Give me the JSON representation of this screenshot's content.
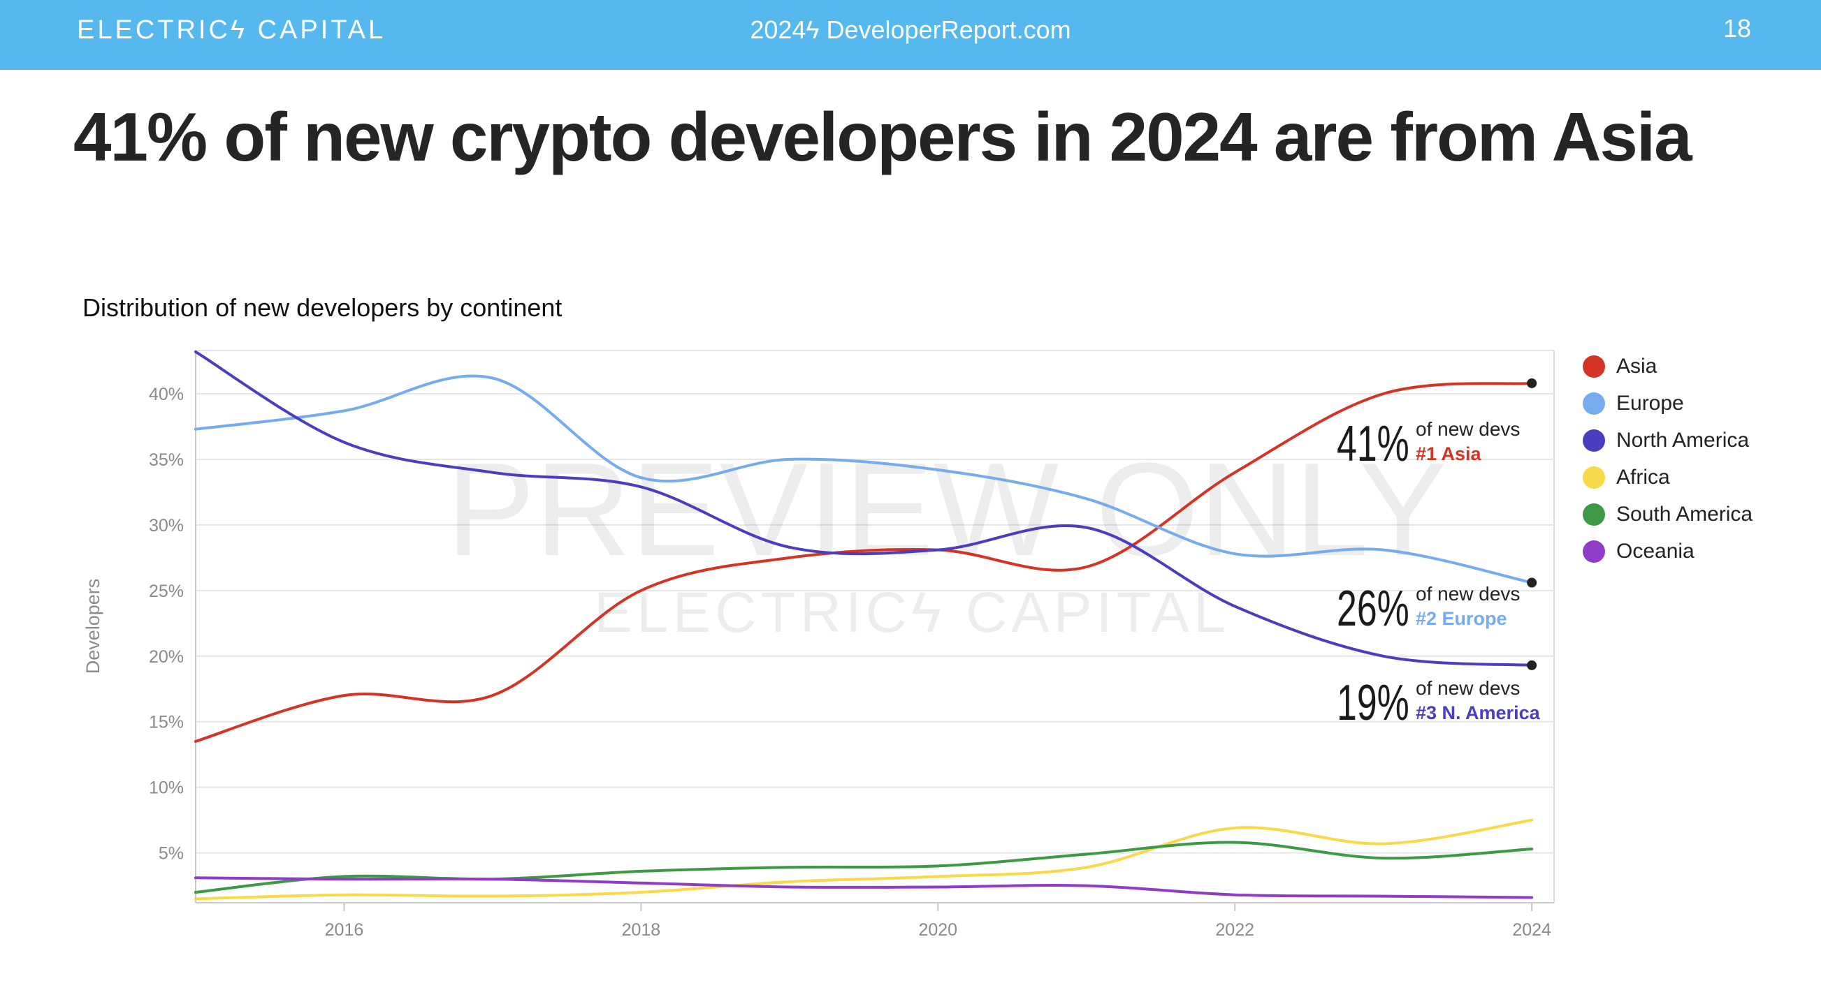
{
  "header": {
    "brand": "ELECTRICϟ CAPITAL",
    "site": "2024ϟ DeveloperReport.com",
    "page_number": "18",
    "bar_color": "#55b8ee"
  },
  "headline": "41% of new crypto developers in 2024 are from Asia",
  "watermark": {
    "line1": "PREVIEW ONLY",
    "line2": "ELECTRICϟ CAPITAL"
  },
  "chart_data": {
    "type": "line",
    "title": "Distribution of new developers by continent",
    "ylabel": "Developers",
    "xlabel": "",
    "xlim": [
      2015,
      2024.15
    ],
    "ylim": [
      1.2,
      43.3
    ],
    "x_ticks": [
      2016,
      2018,
      2020,
      2022,
      2024
    ],
    "x_tick_labels": [
      "2016",
      "2018",
      "2020",
      "2022",
      "2024"
    ],
    "y_ticks": [
      5,
      10,
      15,
      20,
      25,
      30,
      35,
      40
    ],
    "y_tick_labels": [
      "5%",
      "10%",
      "15%",
      "20%",
      "25%",
      "30%",
      "35%",
      "40%"
    ],
    "grid": true,
    "legend_position": "right",
    "x": [
      2015,
      2016,
      2017,
      2018,
      2019,
      2020,
      2021,
      2022,
      2023,
      2024
    ],
    "series": [
      {
        "name": "Asia",
        "color": "#d43325",
        "values": [
          13.5,
          17.0,
          17.0,
          25.0,
          27.5,
          28.1,
          26.8,
          34.0,
          40.0,
          40.8
        ],
        "end_marker": true
      },
      {
        "name": "Europe",
        "color": "#76acef",
        "values": [
          37.3,
          38.7,
          41.2,
          33.6,
          35.0,
          34.2,
          32.0,
          27.8,
          28.1,
          25.6
        ],
        "end_marker": true
      },
      {
        "name": "North America",
        "color": "#4b3dbf",
        "values": [
          43.2,
          36.3,
          34.0,
          32.9,
          28.3,
          28.1,
          29.8,
          23.8,
          20.0,
          19.3
        ],
        "end_marker": true
      },
      {
        "name": "Africa",
        "color": "#f8d94a",
        "values": [
          1.5,
          1.8,
          1.7,
          2.0,
          2.8,
          3.2,
          3.9,
          6.9,
          5.7,
          7.5
        ],
        "end_marker": false
      },
      {
        "name": "South America",
        "color": "#3d9943",
        "values": [
          2.0,
          3.2,
          3.0,
          3.6,
          3.9,
          4.0,
          4.9,
          5.8,
          4.6,
          5.3
        ],
        "end_marker": false
      },
      {
        "name": "Oceania",
        "color": "#8f3cc9",
        "values": [
          3.1,
          3.0,
          3.0,
          2.7,
          2.4,
          2.4,
          2.5,
          1.8,
          1.7,
          1.6
        ],
        "end_marker": false
      }
    ],
    "annotations": [
      {
        "big": "41%",
        "text": "of new devs",
        "rank": "#1 Asia",
        "color": "#d43325"
      },
      {
        "big": "26%",
        "text": "of new devs",
        "rank": "#2 Europe",
        "color": "#76acef"
      },
      {
        "big": "19%",
        "text": "of new devs",
        "rank": "#3 N. America",
        "color": "#4b3dbf"
      }
    ]
  }
}
